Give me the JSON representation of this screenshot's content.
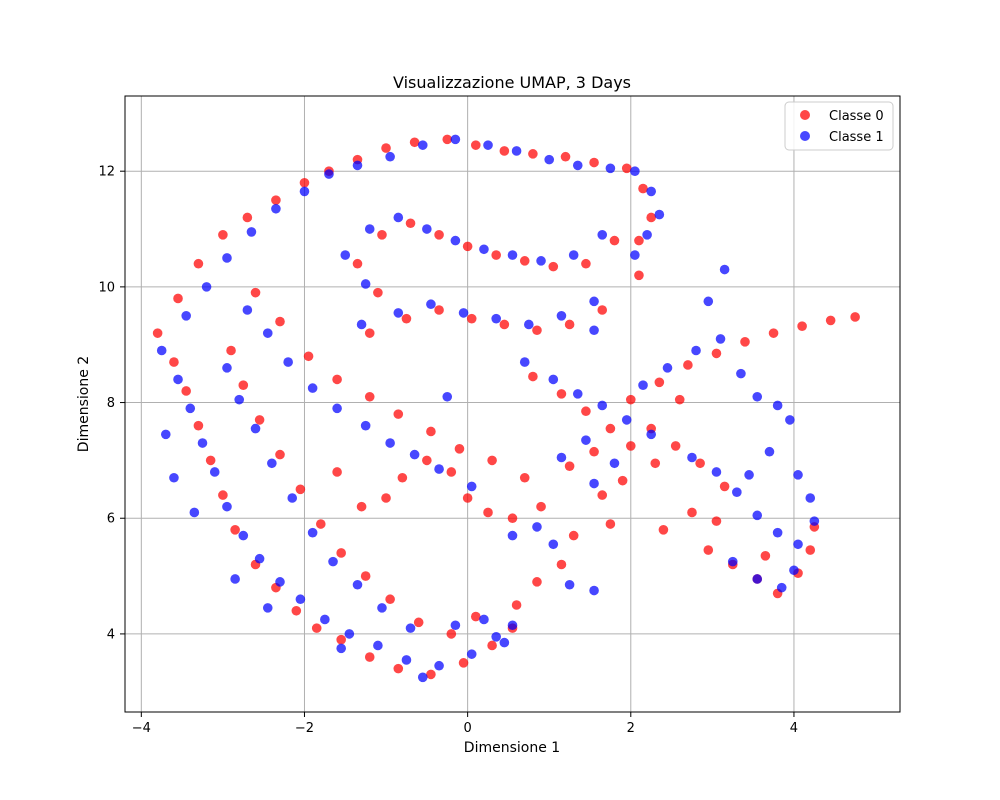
{
  "chart_data": {
    "type": "scatter",
    "title": "Visualizzazione UMAP, 3 Days",
    "xlabel": "Dimensione 1",
    "ylabel": "Dimensione 2",
    "xlim": [
      -4.2,
      5.3
    ],
    "ylim": [
      2.65,
      13.3
    ],
    "xticks": [
      -4,
      -2,
      0,
      2,
      4
    ],
    "yticks": [
      4,
      6,
      8,
      10,
      12
    ],
    "xtick_labels": [
      "−4",
      "−2",
      "0",
      "2",
      "4"
    ],
    "ytick_labels": [
      "4",
      "6",
      "8",
      "10",
      "12"
    ],
    "grid": true,
    "legend_position": "top-right",
    "colors": {
      "background": "#ffffff",
      "axes": "#000000",
      "grid": "#b0b0b0"
    },
    "series": [
      {
        "name": "Classe 0",
        "color": "#ff0000",
        "opacity": 0.72,
        "points": [
          [
            -3.8,
            9.2
          ],
          [
            -3.6,
            8.7
          ],
          [
            -3.45,
            8.2
          ],
          [
            -3.3,
            7.6
          ],
          [
            -3.15,
            7.0
          ],
          [
            -3.0,
            6.4
          ],
          [
            -2.85,
            5.8
          ],
          [
            -2.6,
            5.2
          ],
          [
            -2.35,
            4.8
          ],
          [
            -2.1,
            4.4
          ],
          [
            -1.85,
            4.1
          ],
          [
            -1.55,
            3.9
          ],
          [
            -1.2,
            3.6
          ],
          [
            -0.85,
            3.4
          ],
          [
            -0.45,
            3.3
          ],
          [
            -0.05,
            3.5
          ],
          [
            0.3,
            3.8
          ],
          [
            0.55,
            4.1
          ],
          [
            0.1,
            4.3
          ],
          [
            -0.2,
            4.0
          ],
          [
            -3.55,
            9.8
          ],
          [
            -3.3,
            10.4
          ],
          [
            -3.0,
            10.9
          ],
          [
            -2.7,
            11.2
          ],
          [
            -2.35,
            11.5
          ],
          [
            -2.0,
            11.8
          ],
          [
            -1.7,
            12.0
          ],
          [
            -1.35,
            12.2
          ],
          [
            -1.0,
            12.4
          ],
          [
            -0.65,
            12.5
          ],
          [
            -0.25,
            12.55
          ],
          [
            0.1,
            12.45
          ],
          [
            0.45,
            12.35
          ],
          [
            0.8,
            12.3
          ],
          [
            1.2,
            12.25
          ],
          [
            1.55,
            12.15
          ],
          [
            1.95,
            12.05
          ],
          [
            2.15,
            11.7
          ],
          [
            2.25,
            11.2
          ],
          [
            2.1,
            10.8
          ],
          [
            -2.6,
            9.9
          ],
          [
            -2.3,
            9.4
          ],
          [
            -1.95,
            8.8
          ],
          [
            -1.6,
            8.4
          ],
          [
            -1.2,
            8.1
          ],
          [
            -0.85,
            7.8
          ],
          [
            -0.45,
            7.5
          ],
          [
            -0.1,
            7.2
          ],
          [
            0.3,
            7.0
          ],
          [
            0.7,
            6.7
          ],
          [
            -2.9,
            8.9
          ],
          [
            -2.75,
            8.3
          ],
          [
            -2.55,
            7.7
          ],
          [
            -2.3,
            7.1
          ],
          [
            -2.05,
            6.5
          ],
          [
            -1.8,
            5.9
          ],
          [
            -1.55,
            5.4
          ],
          [
            -1.25,
            5.0
          ],
          [
            -0.95,
            4.6
          ],
          [
            -0.6,
            4.2
          ],
          [
            -1.1,
            9.9
          ],
          [
            -1.35,
            10.4
          ],
          [
            -1.05,
            10.9
          ],
          [
            -0.7,
            11.1
          ],
          [
            -0.35,
            10.9
          ],
          [
            0.0,
            10.7
          ],
          [
            0.35,
            10.55
          ],
          [
            0.7,
            10.45
          ],
          [
            1.05,
            10.35
          ],
          [
            1.45,
            10.4
          ],
          [
            1.8,
            10.8
          ],
          [
            2.1,
            10.2
          ],
          [
            1.65,
            9.6
          ],
          [
            1.25,
            9.35
          ],
          [
            0.85,
            9.25
          ],
          [
            0.45,
            9.35
          ],
          [
            0.05,
            9.45
          ],
          [
            -0.35,
            9.6
          ],
          [
            -0.75,
            9.45
          ],
          [
            -1.2,
            9.2
          ],
          [
            0.8,
            8.45
          ],
          [
            1.15,
            8.15
          ],
          [
            1.45,
            7.85
          ],
          [
            1.75,
            7.55
          ],
          [
            2.0,
            7.25
          ],
          [
            2.3,
            6.95
          ],
          [
            1.55,
            7.15
          ],
          [
            1.9,
            6.65
          ],
          [
            1.25,
            6.9
          ],
          [
            1.65,
            6.4
          ],
          [
            2.0,
            8.05
          ],
          [
            2.35,
            8.35
          ],
          [
            2.7,
            8.65
          ],
          [
            3.05,
            8.85
          ],
          [
            3.4,
            9.05
          ],
          [
            3.75,
            9.2
          ],
          [
            4.1,
            9.32
          ],
          [
            4.45,
            9.42
          ],
          [
            4.75,
            9.48
          ],
          [
            2.6,
            8.05
          ],
          [
            2.25,
            7.55
          ],
          [
            2.55,
            7.25
          ],
          [
            2.85,
            6.95
          ],
          [
            3.15,
            6.55
          ],
          [
            2.75,
            6.1
          ],
          [
            2.4,
            5.8
          ],
          [
            2.95,
            5.45
          ],
          [
            3.25,
            5.2
          ],
          [
            3.55,
            4.95
          ],
          [
            3.8,
            4.7
          ],
          [
            4.05,
            5.05
          ],
          [
            4.2,
            5.45
          ],
          [
            4.25,
            5.85
          ],
          [
            3.65,
            5.35
          ],
          [
            3.05,
            5.95
          ],
          [
            1.75,
            5.9
          ],
          [
            1.3,
            5.7
          ],
          [
            1.15,
            5.2
          ],
          [
            0.85,
            4.9
          ],
          [
            0.6,
            4.5
          ],
          [
            0.9,
            6.2
          ],
          [
            0.55,
            6.0
          ],
          [
            0.25,
            6.1
          ],
          [
            0.0,
            6.35
          ],
          [
            -0.2,
            6.8
          ],
          [
            -0.5,
            7.0
          ],
          [
            -0.8,
            6.7
          ],
          [
            -1.0,
            6.35
          ],
          [
            -1.3,
            6.2
          ],
          [
            -1.6,
            6.8
          ]
        ]
      },
      {
        "name": "Classe 1",
        "color": "#0000ff",
        "opacity": 0.72,
        "points": [
          [
            -3.75,
            8.9
          ],
          [
            -3.55,
            8.4
          ],
          [
            -3.4,
            7.9
          ],
          [
            -3.25,
            7.3
          ],
          [
            -3.1,
            6.8
          ],
          [
            -2.95,
            6.2
          ],
          [
            -2.75,
            5.7
          ],
          [
            -2.55,
            5.3
          ],
          [
            -2.3,
            4.9
          ],
          [
            -2.05,
            4.6
          ],
          [
            -1.75,
            4.25
          ],
          [
            -1.45,
            4.0
          ],
          [
            -1.1,
            3.8
          ],
          [
            -0.75,
            3.55
          ],
          [
            -0.35,
            3.45
          ],
          [
            0.05,
            3.65
          ],
          [
            0.35,
            3.95
          ],
          [
            0.55,
            4.15
          ],
          [
            0.2,
            4.25
          ],
          [
            -0.15,
            4.15
          ],
          [
            -3.45,
            9.5
          ],
          [
            -3.2,
            10.0
          ],
          [
            -2.95,
            10.5
          ],
          [
            -2.65,
            10.95
          ],
          [
            -2.35,
            11.35
          ],
          [
            -2.0,
            11.65
          ],
          [
            -1.7,
            11.95
          ],
          [
            -1.35,
            12.1
          ],
          [
            -0.95,
            12.25
          ],
          [
            -0.55,
            12.45
          ],
          [
            -0.15,
            12.55
          ],
          [
            0.25,
            12.45
          ],
          [
            0.6,
            12.35
          ],
          [
            1.0,
            12.2
          ],
          [
            1.35,
            12.1
          ],
          [
            1.75,
            12.05
          ],
          [
            2.05,
            12.0
          ],
          [
            2.25,
            11.65
          ],
          [
            2.35,
            11.25
          ],
          [
            2.2,
            10.9
          ],
          [
            -2.7,
            9.6
          ],
          [
            -2.45,
            9.2
          ],
          [
            -2.2,
            8.7
          ],
          [
            -1.9,
            8.25
          ],
          [
            -1.6,
            7.9
          ],
          [
            -1.25,
            7.6
          ],
          [
            -0.95,
            7.3
          ],
          [
            -0.65,
            7.1
          ],
          [
            -0.35,
            6.85
          ],
          [
            0.05,
            6.55
          ],
          [
            -2.95,
            8.6
          ],
          [
            -2.8,
            8.05
          ],
          [
            -2.6,
            7.55
          ],
          [
            -2.4,
            6.95
          ],
          [
            -2.15,
            6.35
          ],
          [
            -1.9,
            5.75
          ],
          [
            -1.65,
            5.25
          ],
          [
            -1.35,
            4.85
          ],
          [
            -1.05,
            4.45
          ],
          [
            -0.7,
            4.1
          ],
          [
            -1.25,
            10.05
          ],
          [
            -1.5,
            10.55
          ],
          [
            -1.2,
            11.0
          ],
          [
            -0.85,
            11.2
          ],
          [
            -0.5,
            11.0
          ],
          [
            -0.15,
            10.8
          ],
          [
            0.2,
            10.65
          ],
          [
            0.55,
            10.55
          ],
          [
            0.9,
            10.45
          ],
          [
            1.3,
            10.55
          ],
          [
            1.65,
            10.9
          ],
          [
            2.05,
            10.55
          ],
          [
            1.55,
            9.75
          ],
          [
            1.15,
            9.5
          ],
          [
            0.75,
            9.35
          ],
          [
            0.35,
            9.45
          ],
          [
            -0.05,
            9.55
          ],
          [
            -0.45,
            9.7
          ],
          [
            -0.85,
            9.55
          ],
          [
            -1.3,
            9.35
          ],
          [
            0.7,
            8.7
          ],
          [
            1.05,
            8.4
          ],
          [
            1.35,
            8.15
          ],
          [
            1.65,
            7.95
          ],
          [
            1.95,
            7.7
          ],
          [
            2.25,
            7.45
          ],
          [
            1.45,
            7.35
          ],
          [
            1.8,
            6.95
          ],
          [
            1.15,
            7.05
          ],
          [
            1.55,
            6.6
          ],
          [
            2.15,
            8.3
          ],
          [
            2.45,
            8.6
          ],
          [
            2.8,
            8.9
          ],
          [
            3.1,
            9.1
          ],
          [
            3.35,
            8.5
          ],
          [
            3.55,
            8.1
          ],
          [
            3.8,
            7.95
          ],
          [
            3.95,
            7.7
          ],
          [
            3.7,
            7.15
          ],
          [
            3.45,
            6.75
          ],
          [
            2.75,
            7.05
          ],
          [
            3.05,
            6.8
          ],
          [
            3.3,
            6.45
          ],
          [
            3.55,
            6.05
          ],
          [
            3.8,
            5.75
          ],
          [
            4.05,
            5.55
          ],
          [
            4.25,
            5.95
          ],
          [
            4.2,
            6.35
          ],
          [
            4.05,
            6.75
          ],
          [
            3.25,
            5.25
          ],
          [
            3.55,
            4.95
          ],
          [
            3.85,
            4.8
          ],
          [
            4.0,
            5.1
          ],
          [
            3.15,
            10.3
          ],
          [
            2.95,
            9.75
          ],
          [
            1.55,
            9.25
          ],
          [
            0.85,
            5.85
          ],
          [
            0.55,
            5.7
          ],
          [
            1.05,
            5.55
          ],
          [
            1.25,
            4.85
          ],
          [
            1.55,
            4.75
          ],
          [
            0.45,
            3.85
          ],
          [
            -0.55,
            3.25
          ],
          [
            -1.55,
            3.75
          ],
          [
            -2.45,
            4.45
          ],
          [
            -2.85,
            4.95
          ],
          [
            -3.35,
            6.1
          ],
          [
            -3.6,
            6.7
          ],
          [
            -3.7,
            7.45
          ],
          [
            -0.25,
            8.1
          ]
        ]
      }
    ]
  }
}
